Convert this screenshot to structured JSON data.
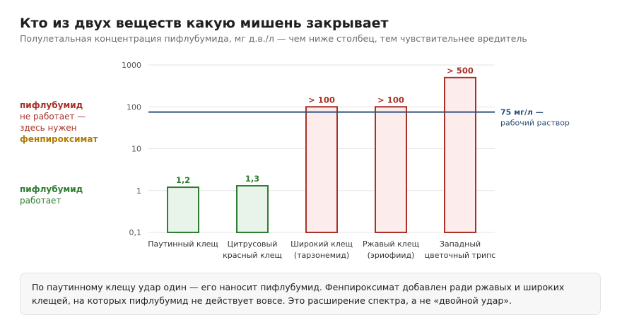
{
  "header": {
    "title": "Кто из двух веществ какую мишень закрывает",
    "subtitle": "Полулетальная концентрация пифлубумида, мг д.в./л — чем ниже столбец, тем чувствительнее вредитель"
  },
  "side_labels": {
    "top": {
      "line1": "пифлубумид",
      "line2": "не работает —",
      "line3": "здесь нужен",
      "line4": "фенпироксимат"
    },
    "bottom": {
      "line1": "пифлубумид",
      "line2": "работает"
    }
  },
  "colors": {
    "works_stroke": "#2e7d32",
    "works_fill": "#e8f4ea",
    "fails_stroke": "#a83228",
    "fails_fill": "#fdecec",
    "reference": "#2c4f7c",
    "grid": "#e6e6e6"
  },
  "chart_data": {
    "type": "bar",
    "y_scale": "log",
    "ylim": [
      0.1,
      1000
    ],
    "y_ticks": [
      {
        "value": 0.1,
        "label": "0,1"
      },
      {
        "value": 1,
        "label": "1"
      },
      {
        "value": 10,
        "label": "10"
      },
      {
        "value": 100,
        "label": "100"
      },
      {
        "value": 1000,
        "label": "1000"
      }
    ],
    "grid": true,
    "bars": [
      {
        "category": [
          "Паутинный клещ"
        ],
        "value": 1.2,
        "label": "1,2",
        "status": "works"
      },
      {
        "category": [
          "Цитрусовый",
          "красный клещ"
        ],
        "value": 1.3,
        "label": "1,3",
        "status": "works"
      },
      {
        "category": [
          "Широкий клещ",
          "(тарзонемид)"
        ],
        "value": 100,
        "label": "> 100",
        "status": "fails"
      },
      {
        "category": [
          "Ржавый клещ",
          "(эриофиид)"
        ],
        "value": 100,
        "label": "> 100",
        "status": "fails"
      },
      {
        "category": [
          "Западный",
          "цветочный трипс"
        ],
        "value": 500,
        "label": "> 500",
        "status": "fails"
      }
    ],
    "reference_line": {
      "value": 75,
      "label_line1": "75 мг/л —",
      "label_line2": "рабочий раствор"
    }
  },
  "note": {
    "text": "По паутинному клещу удар один — его наносит пифлубумид. Фенпироксимат добавлен ради ржавых и широких клещей, на которых пифлубумид не действует вовсе. Это расширение спектра, а не «двойной удар»."
  }
}
